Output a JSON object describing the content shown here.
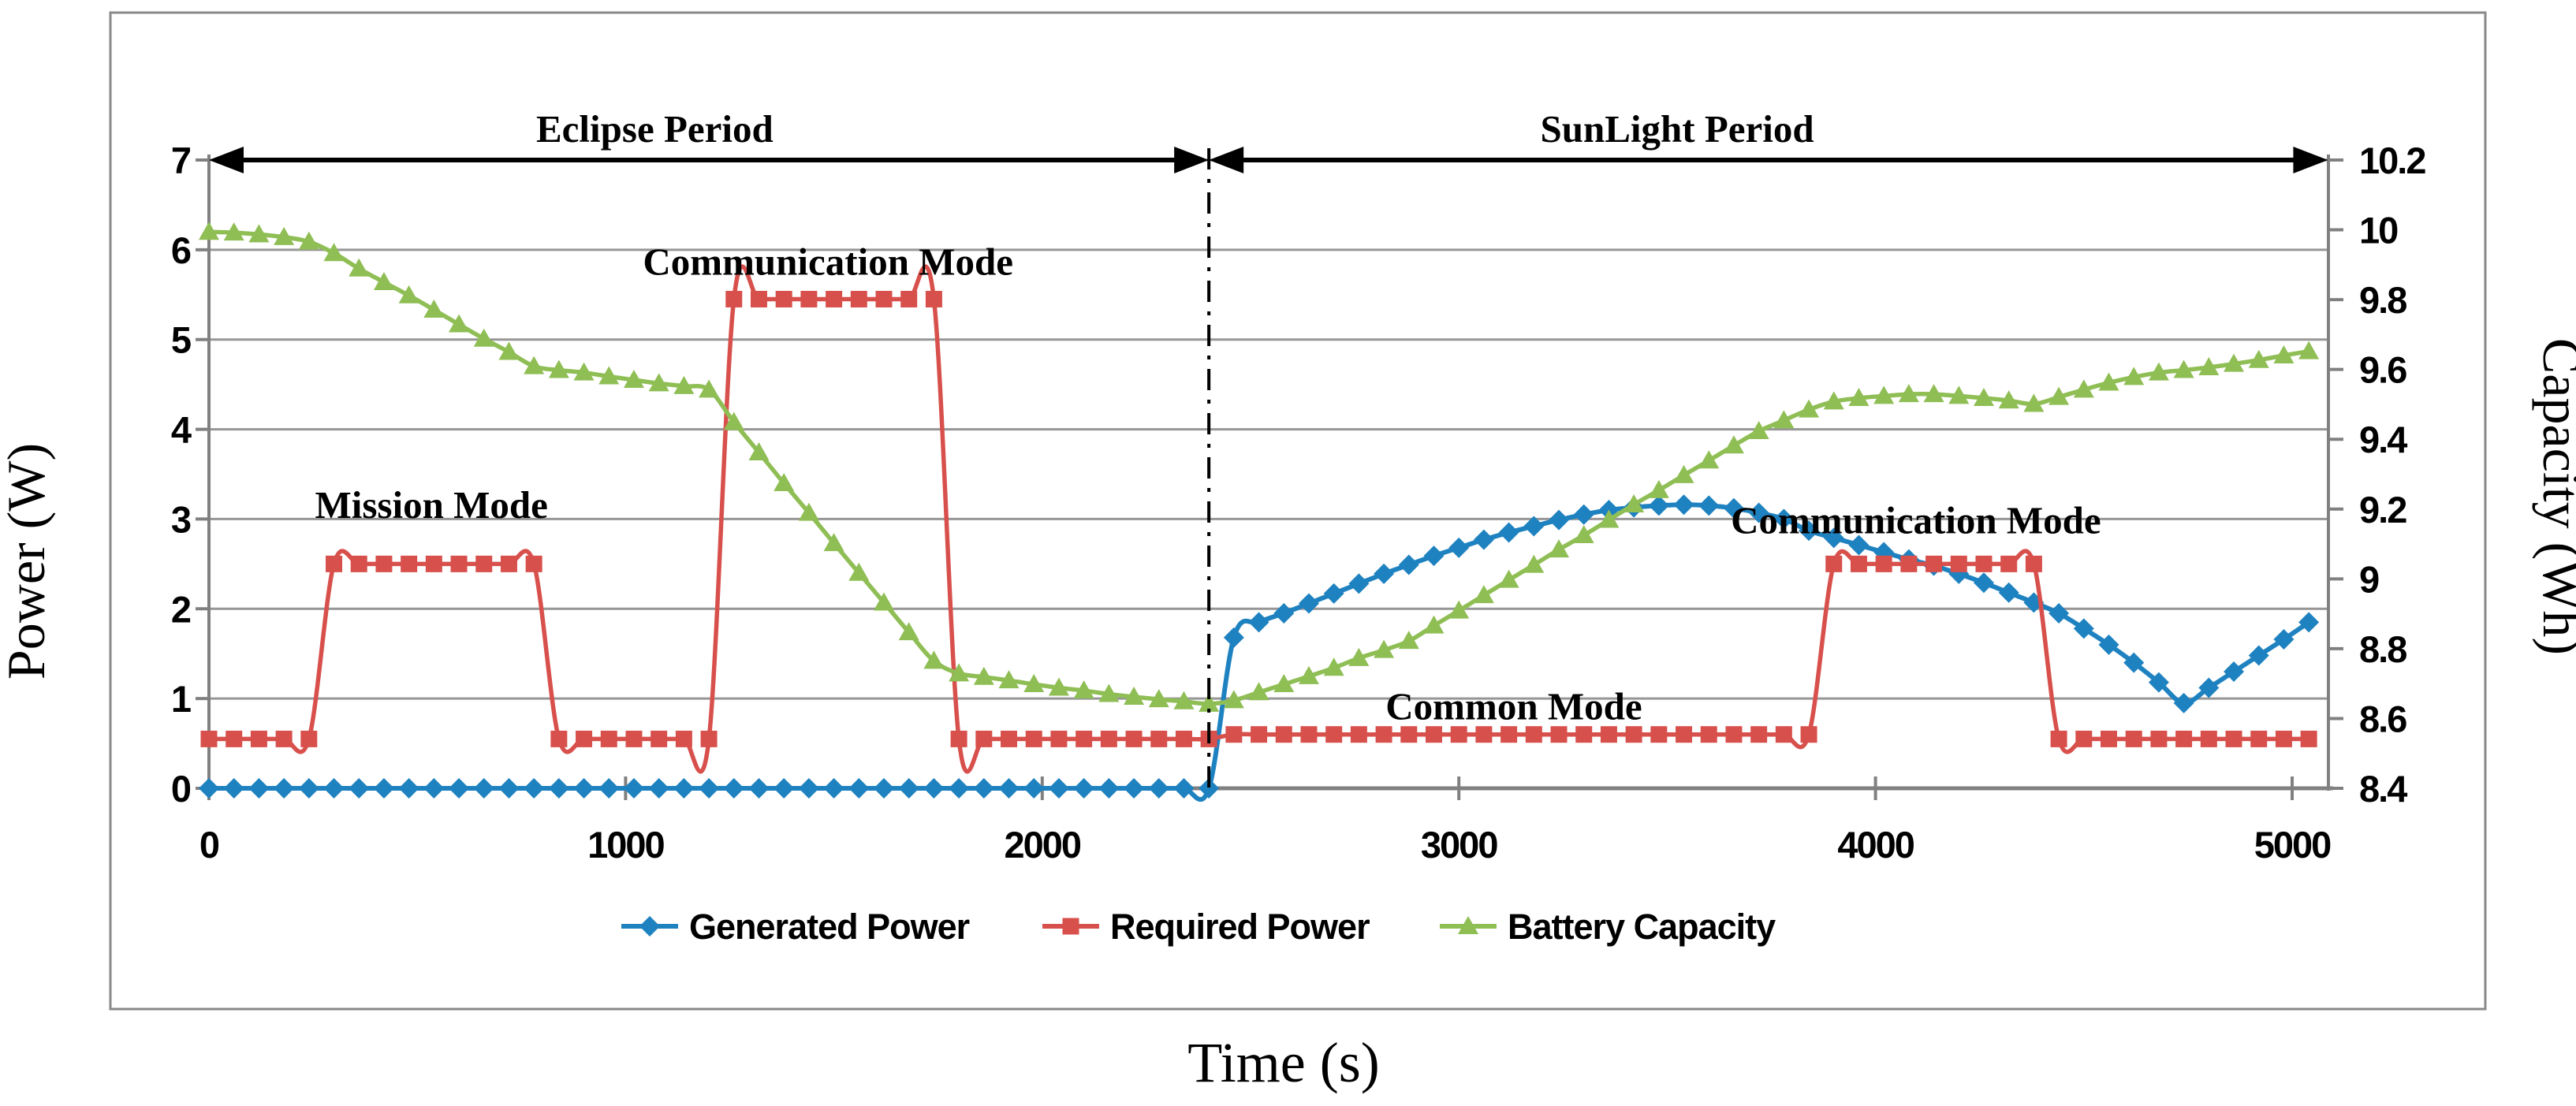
{
  "chart_data": {
    "type": "line",
    "xlabel": "Time (s)",
    "ylabel_left": "Power (W)",
    "ylabel_right": "Capacity (Wh)",
    "t_step": 60,
    "t_max": 5040,
    "xlim": [
      0,
      5086
    ],
    "ylim_left": [
      0,
      7
    ],
    "ylim_right": [
      8.4,
      10.2
    ],
    "grid": "horizontal",
    "legend_position": "bottom",
    "divider_t": 2400,
    "colors": {
      "generated": "#1F82C0",
      "required": "#D8504C",
      "battery": "#8FBE55",
      "gridline": "#969696",
      "axis": "#808080",
      "border": "#898989",
      "annotation": "#000000"
    },
    "axes": {
      "left": {
        "title": "Power (W)",
        "tick_values": [
          0,
          1,
          2,
          3,
          4,
          5,
          6,
          7
        ],
        "tick_labels": [
          "0",
          "1",
          "2",
          "3",
          "4",
          "5",
          "6",
          "7"
        ]
      },
      "right": {
        "title": "Capacity (Wh)",
        "tick_values": [
          8.4,
          8.6,
          8.8,
          9,
          9.2,
          9.4,
          9.6,
          9.8,
          10,
          10.2
        ],
        "tick_labels": [
          "8.4",
          "8.6",
          "8.8",
          "9",
          "9.2",
          "9.4",
          "9.6",
          "9.8",
          "10",
          "10.2"
        ]
      },
      "x": {
        "title": "Time (s)",
        "tick_values": [
          0,
          1000,
          2000,
          3000,
          4000,
          5000
        ],
        "tick_labels": [
          "0",
          "1000",
          "2000",
          "3000",
          "4000",
          "5000"
        ]
      }
    },
    "period_arrows": [
      {
        "label": "Eclipse Period",
        "t0": 0,
        "t1": 2400
      },
      {
        "label": "SunLight Period",
        "t0": 2400,
        "t1": 5086
      }
    ],
    "annotations": [
      {
        "id": "eclipse-period-label",
        "text": "Eclipse Period",
        "t": 1070,
        "v": 7.35
      },
      {
        "id": "sunlight-period-label",
        "text": "SunLight Period",
        "t": 3524,
        "v": 7.35
      },
      {
        "id": "communication-mode-1-label",
        "text": "Communication Mode",
        "t": 1486,
        "v": 5.87
      },
      {
        "id": "mission-mode-label",
        "text": "Mission Mode",
        "t": 534,
        "v": 3.16
      },
      {
        "id": "common-mode-label",
        "text": "Common Mode",
        "t": 3132,
        "v": 0.92
      },
      {
        "id": "communication-mode-2-label",
        "text": "Communication Mode",
        "t": 4097,
        "v": 2.99
      }
    ],
    "series": [
      {
        "name": "Generated Power",
        "axis": "left",
        "marker": "diamond",
        "color": "#1F82C0",
        "values": [
          0,
          0,
          0,
          0,
          0,
          0,
          0,
          0,
          0,
          0,
          0,
          0,
          0,
          0,
          0,
          0,
          0,
          0,
          0,
          0,
          0,
          0,
          0,
          0,
          0,
          0,
          0,
          0,
          0,
          0,
          0,
          0,
          0,
          0,
          0,
          0,
          0,
          0,
          0,
          0,
          0,
          1.68,
          1.85,
          1.95,
          2.06,
          2.17,
          2.28,
          2.39,
          2.49,
          2.59,
          2.68,
          2.77,
          2.85,
          2.92,
          2.99,
          3.05,
          3.1,
          3.13,
          3.15,
          3.16,
          3.15,
          3.12,
          3.07,
          3.0,
          2.87,
          2.79,
          2.71,
          2.63,
          2.55,
          2.48,
          2.39,
          2.29,
          2.18,
          2.07,
          1.95,
          1.78,
          1.6,
          1.4,
          1.18,
          0.95,
          1.12,
          1.3,
          1.48,
          1.66,
          1.85
        ]
      },
      {
        "name": "Required Power",
        "axis": "left",
        "marker": "square",
        "color": "#D8504C",
        "values": [
          0.55,
          0.55,
          0.55,
          0.55,
          0.55,
          2.5,
          2.5,
          2.5,
          2.5,
          2.5,
          2.5,
          2.5,
          2.5,
          2.5,
          0.55,
          0.55,
          0.55,
          0.55,
          0.55,
          0.55,
          0.55,
          5.45,
          5.45,
          5.45,
          5.45,
          5.45,
          5.45,
          5.45,
          5.45,
          5.45,
          0.55,
          0.55,
          0.55,
          0.55,
          0.55,
          0.55,
          0.55,
          0.55,
          0.55,
          0.55,
          0.55,
          0.6,
          0.6,
          0.6,
          0.6,
          0.6,
          0.6,
          0.6,
          0.6,
          0.6,
          0.6,
          0.6,
          0.6,
          0.6,
          0.6,
          0.6,
          0.6,
          0.6,
          0.6,
          0.6,
          0.6,
          0.6,
          0.6,
          0.6,
          0.6,
          2.5,
          2.5,
          2.5,
          2.5,
          2.5,
          2.5,
          2.5,
          2.5,
          2.5,
          0.55,
          0.55,
          0.55,
          0.55,
          0.55,
          0.55,
          0.55,
          0.55,
          0.55,
          0.55,
          0.55
        ]
      },
      {
        "name": "Battery Capacity",
        "axis": "right",
        "marker": "triangle",
        "color": "#8FBE55",
        "values": [
          9.994,
          9.992,
          9.987,
          9.979,
          9.966,
          9.933,
          9.889,
          9.85,
          9.812,
          9.771,
          9.729,
          9.688,
          9.65,
          9.609,
          9.598,
          9.591,
          9.58,
          9.57,
          9.56,
          9.552,
          9.542,
          9.449,
          9.362,
          9.274,
          9.189,
          9.102,
          9.017,
          8.932,
          8.847,
          8.765,
          8.729,
          8.719,
          8.709,
          8.698,
          8.688,
          8.68,
          8.67,
          8.662,
          8.655,
          8.649,
          8.642,
          8.652,
          8.675,
          8.698,
          8.721,
          8.745,
          8.773,
          8.796,
          8.822,
          8.866,
          8.909,
          8.953,
          8.997,
          9.04,
          9.084,
          9.125,
          9.169,
          9.213,
          9.254,
          9.297,
          9.339,
          9.382,
          9.423,
          9.454,
          9.485,
          9.508,
          9.518,
          9.524,
          9.529,
          9.529,
          9.524,
          9.518,
          9.511,
          9.501,
          9.521,
          9.542,
          9.562,
          9.578,
          9.591,
          9.598,
          9.606,
          9.616,
          9.627,
          9.64,
          9.652
        ]
      }
    ]
  }
}
